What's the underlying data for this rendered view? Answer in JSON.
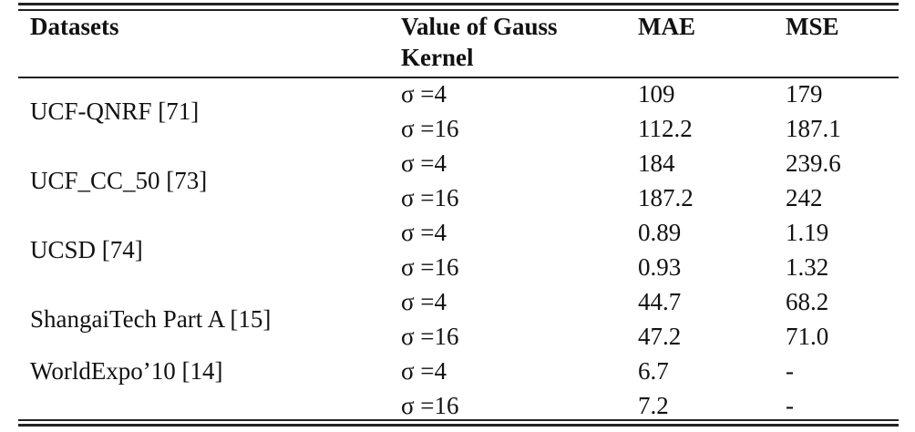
{
  "table": {
    "header": [
      "Datasets",
      "Value of Gauss Kernel",
      "MAE",
      "MSE"
    ],
    "datasets": [
      {
        "name": "UCF-QNRF [71]",
        "rows": [
          [
            "σ =4",
            "109",
            "179"
          ],
          [
            "σ =16",
            "112.2",
            "187.1"
          ]
        ]
      },
      {
        "name": "UCF_CC_50 [73]",
        "rows": [
          [
            "σ =4",
            "184",
            "239.6"
          ],
          [
            "σ =16",
            "187.2",
            "242"
          ]
        ]
      },
      {
        "name": "UCSD [74]",
        "rows": [
          [
            "σ =4",
            "0.89",
            "1.19"
          ],
          [
            "σ =16",
            "0.93",
            "1.32"
          ]
        ]
      },
      {
        "name": "ShangaiTech Part A [15]",
        "rows": [
          [
            "σ =4",
            "44.7",
            "68.2"
          ],
          [
            "σ =16",
            "47.2",
            "71.0"
          ]
        ]
      },
      {
        "name": "WorldExpo’10 [14]",
        "rows": [
          [
            "σ =4",
            "6.7",
            "-"
          ],
          [
            "σ =16",
            "7.2",
            "-"
          ]
        ]
      }
    ]
  }
}
